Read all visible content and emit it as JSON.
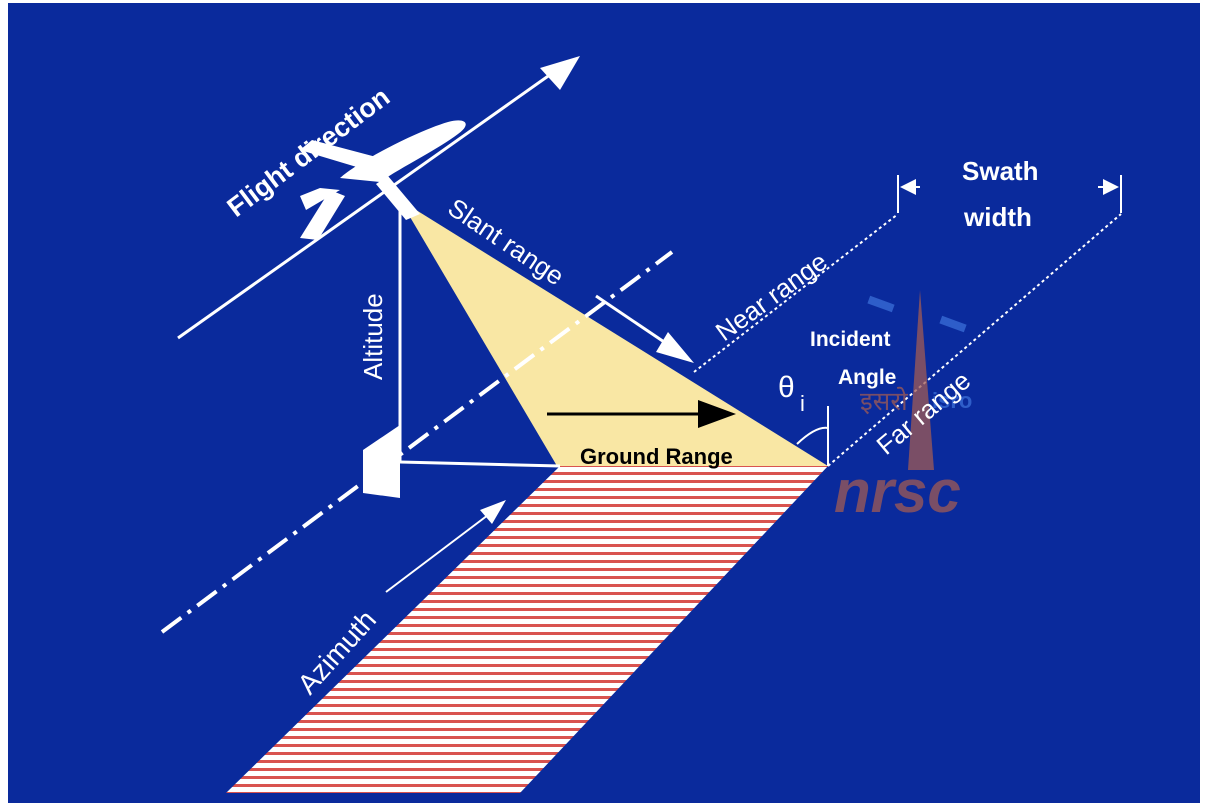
{
  "labels": {
    "flight_direction": "Flight direction",
    "slant_range": "Slant range",
    "near_range": "Near range",
    "far_range": "Far range",
    "swath_line1": "Swath",
    "swath_line2": "width",
    "altitude": "Altitude",
    "incident_line1": "Incident",
    "incident_line2": "Angle",
    "theta": "θ",
    "theta_subscript": "i",
    "ground_range": "Ground Range",
    "azimuth": "Azimuth"
  },
  "watermark": {
    "org": "nrsc",
    "hindi": "इसरो",
    "agency": "isro"
  },
  "colors": {
    "background": "#0a2a9c",
    "footprint": "#f9e7a4",
    "stripe": "#d9534f",
    "line": "#ffffff",
    "watermark": "#a05a55"
  }
}
